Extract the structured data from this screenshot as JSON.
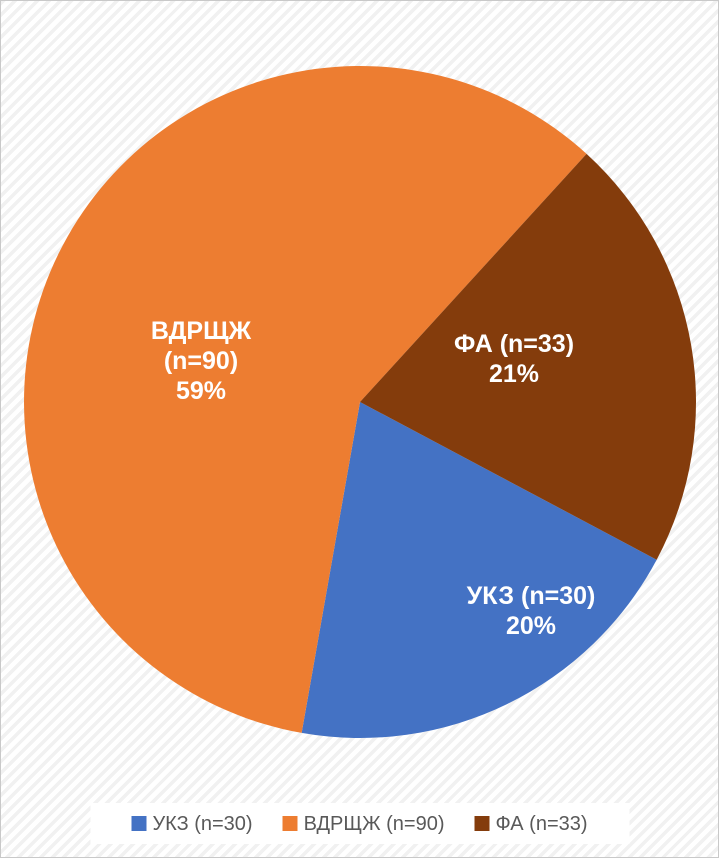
{
  "chart_data": {
    "type": "pie",
    "title": "",
    "legend_position": "bottom",
    "direction": "clockwise",
    "start_angle_deg": 118,
    "data_label_color": "#FFFFFF",
    "legend_text_color": "#595959",
    "legend_fill": "#FFFFFF",
    "slices": [
      {
        "name": "УКЗ",
        "n": 30,
        "percent": 20,
        "color": "#4472C4",
        "legend_label": "УКЗ (n=30)",
        "data_label_lines": [
          "УКЗ (n=30)",
          "20%"
        ]
      },
      {
        "name": "ВДРЩЖ",
        "n": 90,
        "percent": 59,
        "color": "#ED7D31",
        "legend_label": "ВДРЩЖ (n=90)",
        "data_label_lines": [
          "ВДРЩЖ",
          "(n=90)",
          "59%"
        ]
      },
      {
        "name": "ФА",
        "n": 33,
        "percent": 21,
        "color": "#843C0C",
        "legend_label": "ФА (n=33)",
        "data_label_lines": [
          "ФА (n=33)",
          "21%"
        ]
      }
    ]
  }
}
